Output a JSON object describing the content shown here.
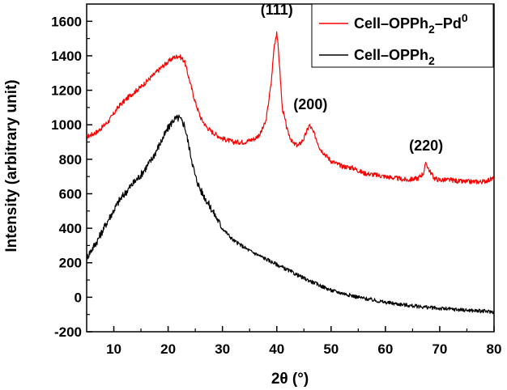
{
  "chart_data": {
    "type": "line",
    "title": "",
    "xlabel": "2θ (°)",
    "ylabel": "Intensity  (arbitrary unit)",
    "xlim": [
      5,
      80
    ],
    "ylim": [
      -200,
      1700
    ],
    "grid": false,
    "legend_position": "top-right",
    "x_ticks": [
      10,
      20,
      30,
      40,
      50,
      60,
      70,
      80
    ],
    "y_ticks": [
      -200,
      0,
      200,
      400,
      600,
      800,
      1000,
      1200,
      1400,
      1600
    ],
    "series": [
      {
        "name": "Cell–OPPh2–Pd0",
        "label_parts": {
          "base": "Cell–OPPh",
          "sub": "2",
          "mid": "–Pd",
          "sup": "0"
        },
        "color": "#ff0000",
        "x": [
          5,
          7,
          9,
          11,
          13,
          15,
          17,
          19,
          21,
          22,
          23,
          24,
          25,
          26,
          27,
          28,
          30,
          32,
          34,
          36,
          37,
          38,
          39,
          39.5,
          40,
          40.5,
          41,
          42,
          43,
          44,
          45,
          46,
          47,
          48,
          50,
          52,
          54,
          56,
          58,
          60,
          62,
          64,
          66,
          67,
          67.5,
          68,
          69,
          70,
          72,
          74,
          76,
          78,
          80
        ],
        "y": [
          930,
          960,
          1020,
          1110,
          1170,
          1220,
          1280,
          1340,
          1390,
          1400,
          1370,
          1250,
          1130,
          1040,
          990,
          960,
          920,
          900,
          900,
          920,
          950,
          1020,
          1250,
          1450,
          1540,
          1350,
          1100,
          960,
          890,
          880,
          920,
          1000,
          940,
          860,
          790,
          760,
          750,
          720,
          710,
          700,
          690,
          680,
          690,
          720,
          780,
          740,
          690,
          680,
          680,
          670,
          670,
          670,
          690
        ]
      },
      {
        "name": "Cell–OPPh2",
        "label_parts": {
          "base": "Cell–OPPh",
          "sub": "2"
        },
        "color": "#000000",
        "x": [
          5,
          7,
          9,
          11,
          13,
          15,
          17,
          19,
          20,
          21,
          22,
          23,
          24,
          25,
          26,
          28,
          30,
          32,
          35,
          40,
          45,
          50,
          55,
          60,
          65,
          70,
          75,
          80
        ],
        "y": [
          230,
          330,
          450,
          560,
          640,
          710,
          800,
          920,
          980,
          1030,
          1040,
          1000,
          850,
          700,
          620,
          510,
          400,
          330,
          270,
          190,
          110,
          40,
          0,
          -30,
          -50,
          -65,
          -75,
          -85
        ]
      }
    ],
    "annotations": [
      {
        "text": "(111)",
        "x": 40,
        "y": 1640
      },
      {
        "text": "(200)",
        "x": 46.2,
        "y": 1090
      },
      {
        "text": "(220)",
        "x": 67.5,
        "y": 850
      }
    ]
  }
}
